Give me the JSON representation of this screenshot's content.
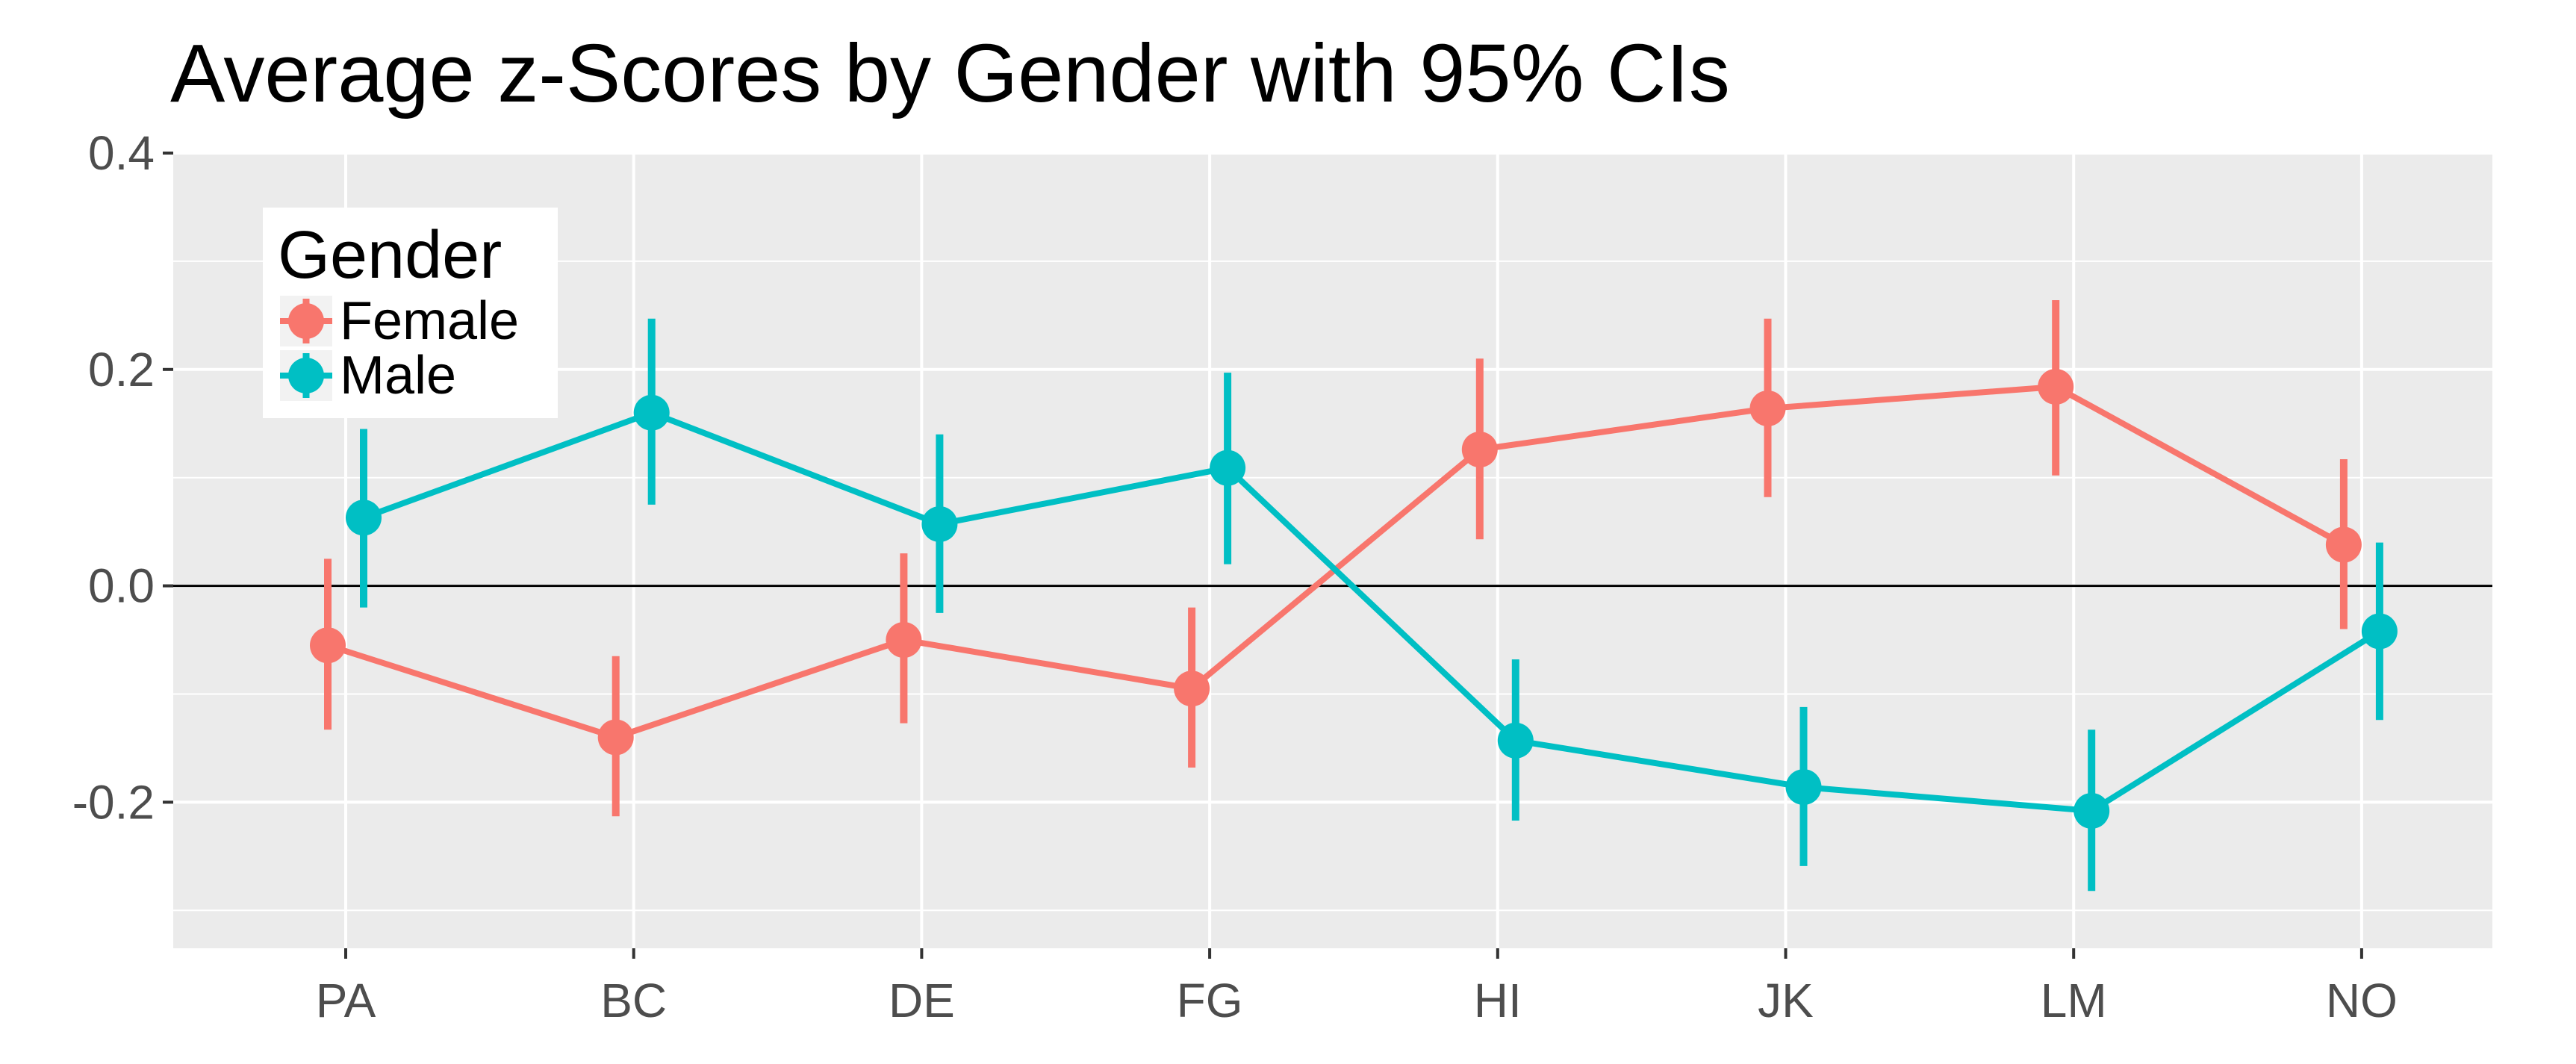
{
  "chart_data": {
    "type": "line",
    "title": "Average z-Scores by Gender with 95% CIs",
    "xlabel": "",
    "ylabel": "",
    "categories": [
      "PA",
      "BC",
      "DE",
      "FG",
      "HI",
      "JK",
      "LM",
      "NO"
    ],
    "ylim": [
      -0.335,
      0.4
    ],
    "yticks": [
      "0.4",
      "0.2",
      "0.0",
      "-0.2"
    ],
    "ytick_values": [
      0.4,
      0.2,
      0.0,
      -0.2
    ],
    "reference_line": 0.0,
    "grid": true,
    "legend": {
      "title": "Gender",
      "placement": "top-left"
    },
    "series": [
      {
        "name": "Female",
        "color": "#F8766D",
        "values": [
          -0.055,
          -0.14,
          -0.05,
          -0.095,
          0.126,
          0.164,
          0.184,
          0.038
        ],
        "ci_low": [
          -0.133,
          -0.213,
          -0.127,
          -0.168,
          0.043,
          0.082,
          0.102,
          -0.04
        ],
        "ci_high": [
          0.025,
          -0.065,
          0.03,
          -0.02,
          0.21,
          0.247,
          0.264,
          0.117
        ]
      },
      {
        "name": "Male",
        "color": "#00BFC4",
        "values": [
          0.063,
          0.16,
          0.057,
          0.109,
          -0.143,
          -0.186,
          -0.208,
          -0.042
        ],
        "ci_low": [
          -0.02,
          0.075,
          -0.025,
          0.02,
          -0.217,
          -0.259,
          -0.282,
          -0.124
        ],
        "ci_high": [
          0.145,
          0.247,
          0.14,
          0.197,
          -0.068,
          -0.112,
          -0.133,
          0.04
        ]
      }
    ]
  }
}
